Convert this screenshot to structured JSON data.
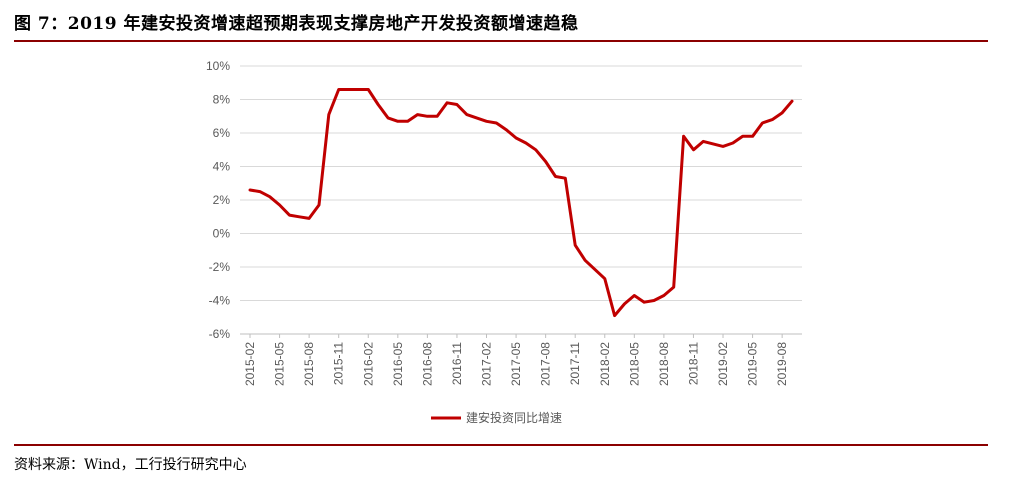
{
  "title": "图 7：2019 年建安投资增速超预期表现支撑房地产开发投资额增速趋稳",
  "source": "资料来源：Wind，工行投行研究中心",
  "colors": {
    "rule": "#8b0000",
    "series": "#c00000",
    "grid": "#d9d9d9",
    "tick_text": "#595959"
  },
  "chart_data": {
    "type": "line",
    "ylim": [
      -6,
      10
    ],
    "yticks": [
      10,
      8,
      6,
      4,
      2,
      0,
      -2,
      -4,
      -6
    ],
    "ytick_labels": [
      "10%",
      "8%",
      "6%",
      "4%",
      "2%",
      "0%",
      "-2%",
      "-4%",
      "-6%"
    ],
    "xtick_labels": [
      "2015-02",
      "2015-05",
      "2015-08",
      "2015-11",
      "2016-02",
      "2016-05",
      "2016-08",
      "2016-11",
      "2017-02",
      "2017-05",
      "2017-08",
      "2017-11",
      "2018-02",
      "2018-05",
      "2018-08",
      "2018-11",
      "2019-02",
      "2019-05",
      "2019-08"
    ],
    "grid": true,
    "legend_position": "bottom",
    "series": [
      {
        "name": "建安投资同比增速",
        "x": [
          "2015-02",
          "2015-03",
          "2015-04",
          "2015-05",
          "2015-06",
          "2015-07",
          "2015-08",
          "2015-09",
          "2015-10",
          "2015-11",
          "2015-12",
          "2016-02",
          "2016-03",
          "2016-04",
          "2016-05",
          "2016-06",
          "2016-07",
          "2016-08",
          "2016-09",
          "2016-10",
          "2016-11",
          "2016-12",
          "2017-02",
          "2017-03",
          "2017-04",
          "2017-05",
          "2017-06",
          "2017-07",
          "2017-08",
          "2017-09",
          "2017-10",
          "2017-11",
          "2017-12",
          "2018-02",
          "2018-03",
          "2018-04",
          "2018-05",
          "2018-06",
          "2018-07",
          "2018-08",
          "2018-09",
          "2018-10",
          "2018-11",
          "2018-12",
          "2019-02",
          "2019-03",
          "2019-04",
          "2019-05",
          "2019-06",
          "2019-07",
          "2019-08",
          "2019-09"
        ],
        "values": [
          2.6,
          2.5,
          2.2,
          1.7,
          1.1,
          1.0,
          0.9,
          1.7,
          7.1,
          8.6,
          8.6,
          8.6,
          7.7,
          6.9,
          6.7,
          6.7,
          7.1,
          7.0,
          7.0,
          7.8,
          7.7,
          7.1,
          6.7,
          6.6,
          6.2,
          5.7,
          5.4,
          5.0,
          4.3,
          3.4,
          3.3,
          -0.7,
          -1.6,
          -2.7,
          -4.9,
          -4.2,
          -3.7,
          -4.1,
          -4.0,
          -3.7,
          -3.2,
          5.8,
          5.0,
          5.5,
          5.2,
          5.4,
          5.8,
          5.8,
          6.6,
          6.8,
          7.2,
          7.9
        ]
      }
    ]
  }
}
